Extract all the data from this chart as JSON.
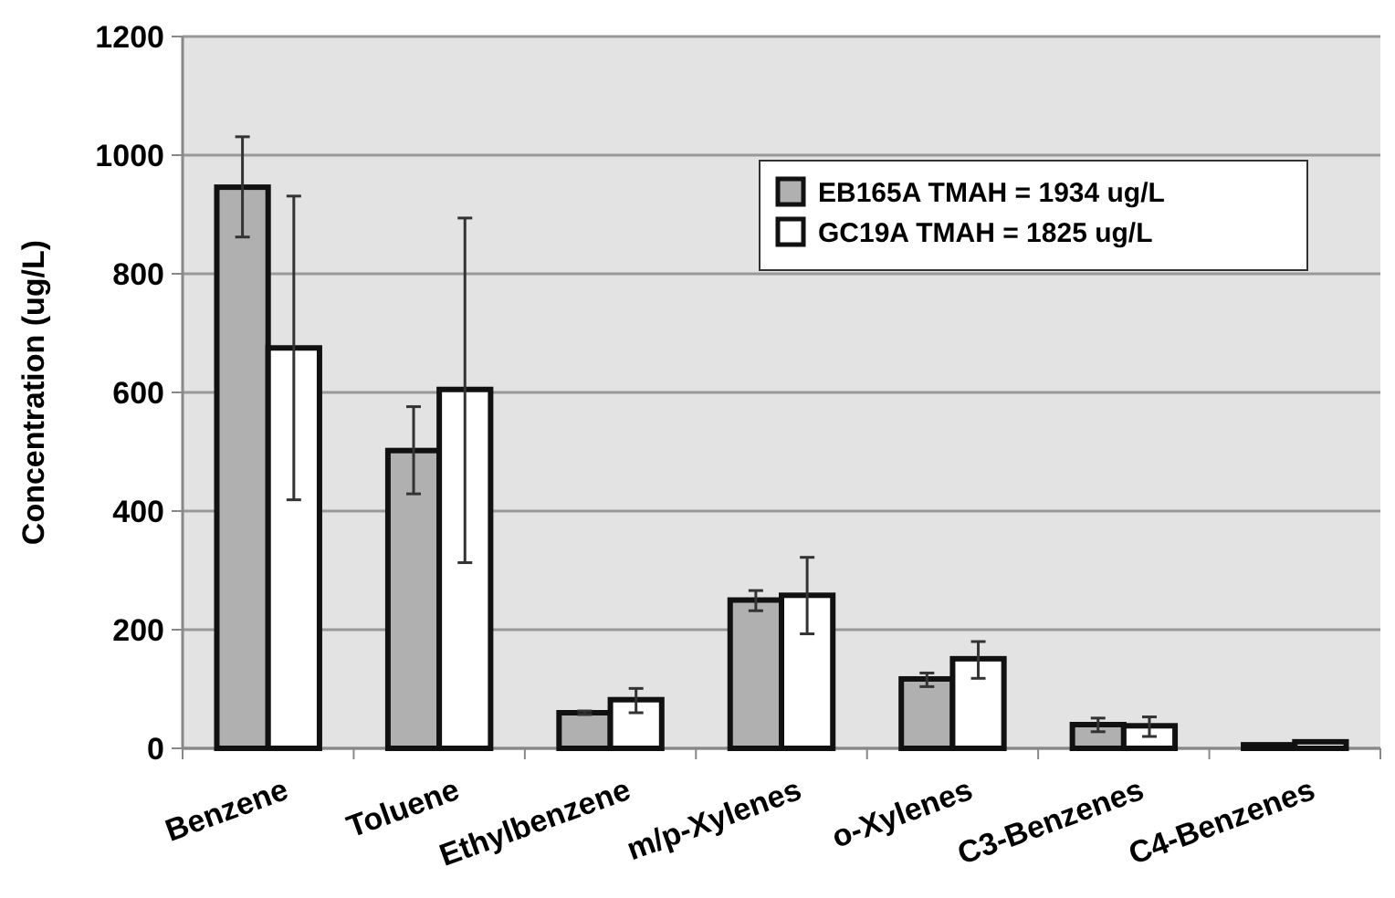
{
  "chart_data": {
    "type": "bar",
    "ylabel": "Concentration (ug/L)",
    "categories": [
      "Benzene",
      "Toluene",
      "Ethylbenzene",
      "m/p-Xylenes",
      "o-Xylenes",
      "C3-Benzenes",
      "C4-Benzenes"
    ],
    "series": [
      {
        "name": "EB165A TMAH = 1934 ug/L",
        "color": "#b0b0b0",
        "values": [
          946,
          502,
          60,
          250,
          117,
          40,
          6
        ],
        "errors": [
          [
            862,
            1031
          ],
          [
            429,
            576
          ],
          [
            57,
            63
          ],
          [
            232,
            266
          ],
          [
            104,
            127
          ],
          [
            28,
            51
          ],
          null
        ]
      },
      {
        "name": "GC19A TMAH = 1825 ug/L",
        "color": "#ffffff",
        "values": [
          675,
          605,
          82,
          258,
          151,
          38,
          11
        ],
        "errors": [
          [
            419,
            931
          ],
          [
            313,
            894
          ],
          [
            60,
            101
          ],
          [
            193,
            322
          ],
          [
            118,
            180
          ],
          [
            20,
            53
          ],
          null
        ]
      }
    ],
    "ylim": [
      0,
      1200
    ],
    "yticks": [
      0,
      200,
      400,
      600,
      800,
      1000,
      1200
    ],
    "grid": "y",
    "legend": "top right"
  }
}
